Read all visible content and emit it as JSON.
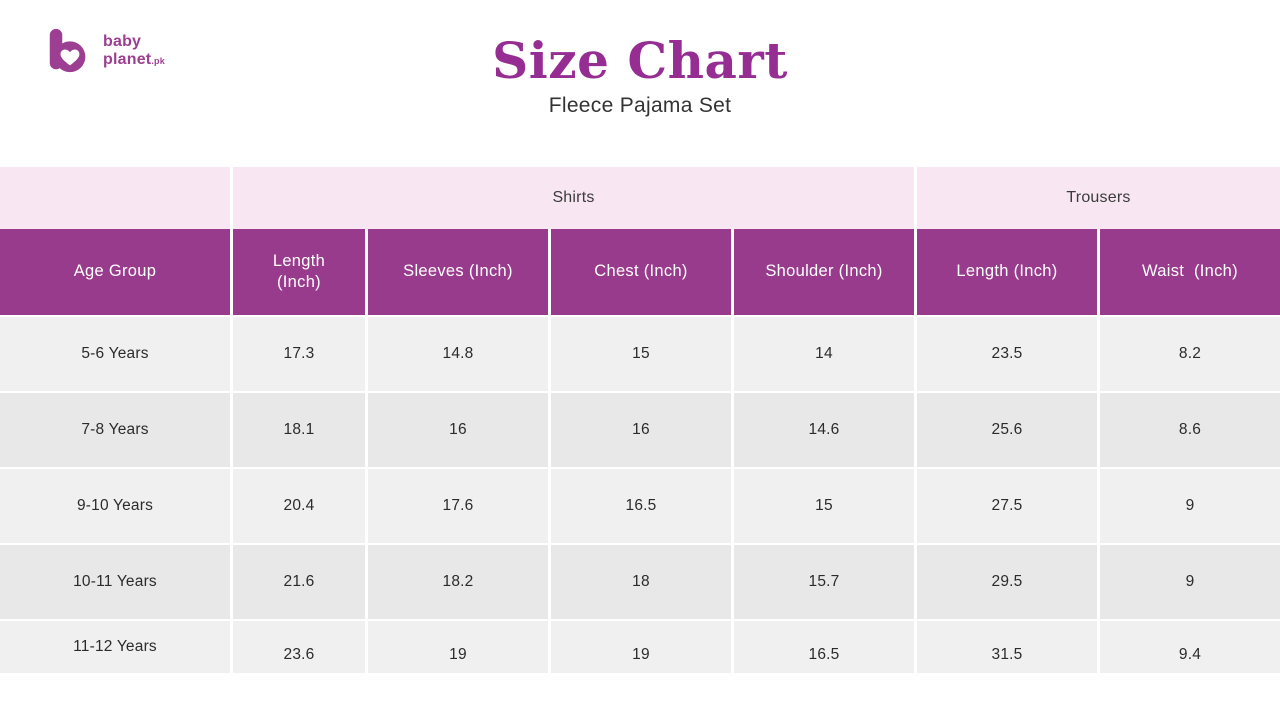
{
  "logo": {
    "line1": "baby",
    "line2": "planet",
    "tld": ".pk",
    "brand_color": "#9c3f92"
  },
  "header": {
    "title": "Size Chart",
    "subtitle": "Fleece Pajama Set",
    "title_color": "#962d92"
  },
  "table": {
    "group_headers": [
      {
        "label": "",
        "span": 1
      },
      {
        "label": "Shirts",
        "span": 4
      },
      {
        "label": "Trousers",
        "span": 2
      }
    ],
    "columns": [
      "Age Group",
      "Length\n(Inch)",
      "Sleeves (Inch)",
      "Chest (Inch)",
      "Shoulder (Inch)",
      "Length (Inch)",
      "Waist  (Inch)"
    ],
    "colors": {
      "header_bg": "#993b8c",
      "band_bg": "#f8e7f3",
      "row_light": "#f1f0f1",
      "row_dark": "#e9e8e9",
      "header_text": "#ffffff",
      "cell_text": "#2b2b2b"
    }
  },
  "chart_data": {
    "type": "table",
    "title": "Size Chart",
    "subtitle": "Fleece Pajama Set",
    "column_groups": [
      {
        "label": "Shirts",
        "columns": [
          "Length (Inch)",
          "Sleeves (Inch)",
          "Chest (Inch)",
          "Shoulder (Inch)"
        ]
      },
      {
        "label": "Trousers",
        "columns": [
          "Length (Inch)",
          "Waist (Inch)"
        ]
      }
    ],
    "columns": [
      "Age Group",
      "Shirt Length (Inch)",
      "Sleeves (Inch)",
      "Chest (Inch)",
      "Shoulder (Inch)",
      "Trouser Length (Inch)",
      "Waist (Inch)"
    ],
    "rows": [
      [
        "5-6 Years",
        17.3,
        14.8,
        15,
        14,
        23.5,
        8.2
      ],
      [
        "7-8 Years",
        18.1,
        16,
        16,
        14.6,
        25.6,
        8.6
      ],
      [
        "9-10 Years",
        20.4,
        17.6,
        16.5,
        15,
        27.5,
        9
      ],
      [
        "10-11 Years",
        21.6,
        18.2,
        18,
        15.7,
        29.5,
        9
      ],
      [
        "11-12 Years",
        23.6,
        19,
        19,
        16.5,
        31.5,
        9.4
      ]
    ]
  }
}
